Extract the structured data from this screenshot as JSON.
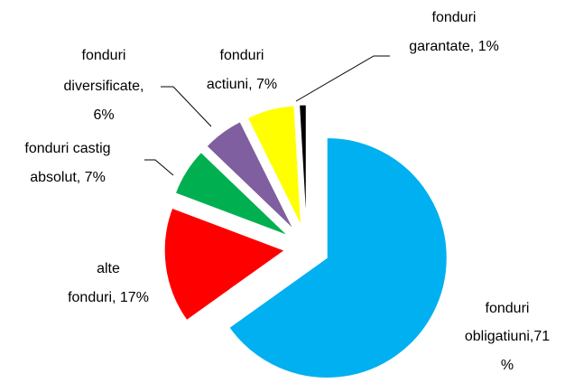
{
  "chart_data": {
    "type": "pie",
    "values": [
      71,
      17,
      7,
      6,
      7,
      1
    ],
    "labels": [
      [
        "fonduri",
        "obligatiuni,71",
        "%"
      ],
      [
        "alte",
        "fonduri, 17%"
      ],
      [
        "fonduri castig",
        "absolut, 7%"
      ],
      [
        "fonduri",
        "diversificate,",
        "6%"
      ],
      [
        "fonduri",
        "actiuni, 7%"
      ],
      [
        "fonduri",
        "garantate, 1%"
      ]
    ],
    "colors": [
      "#00b0f0",
      "#ff0000",
      "#00b050",
      "#7f5f9f",
      "#ffff00",
      "#000000"
    ]
  }
}
